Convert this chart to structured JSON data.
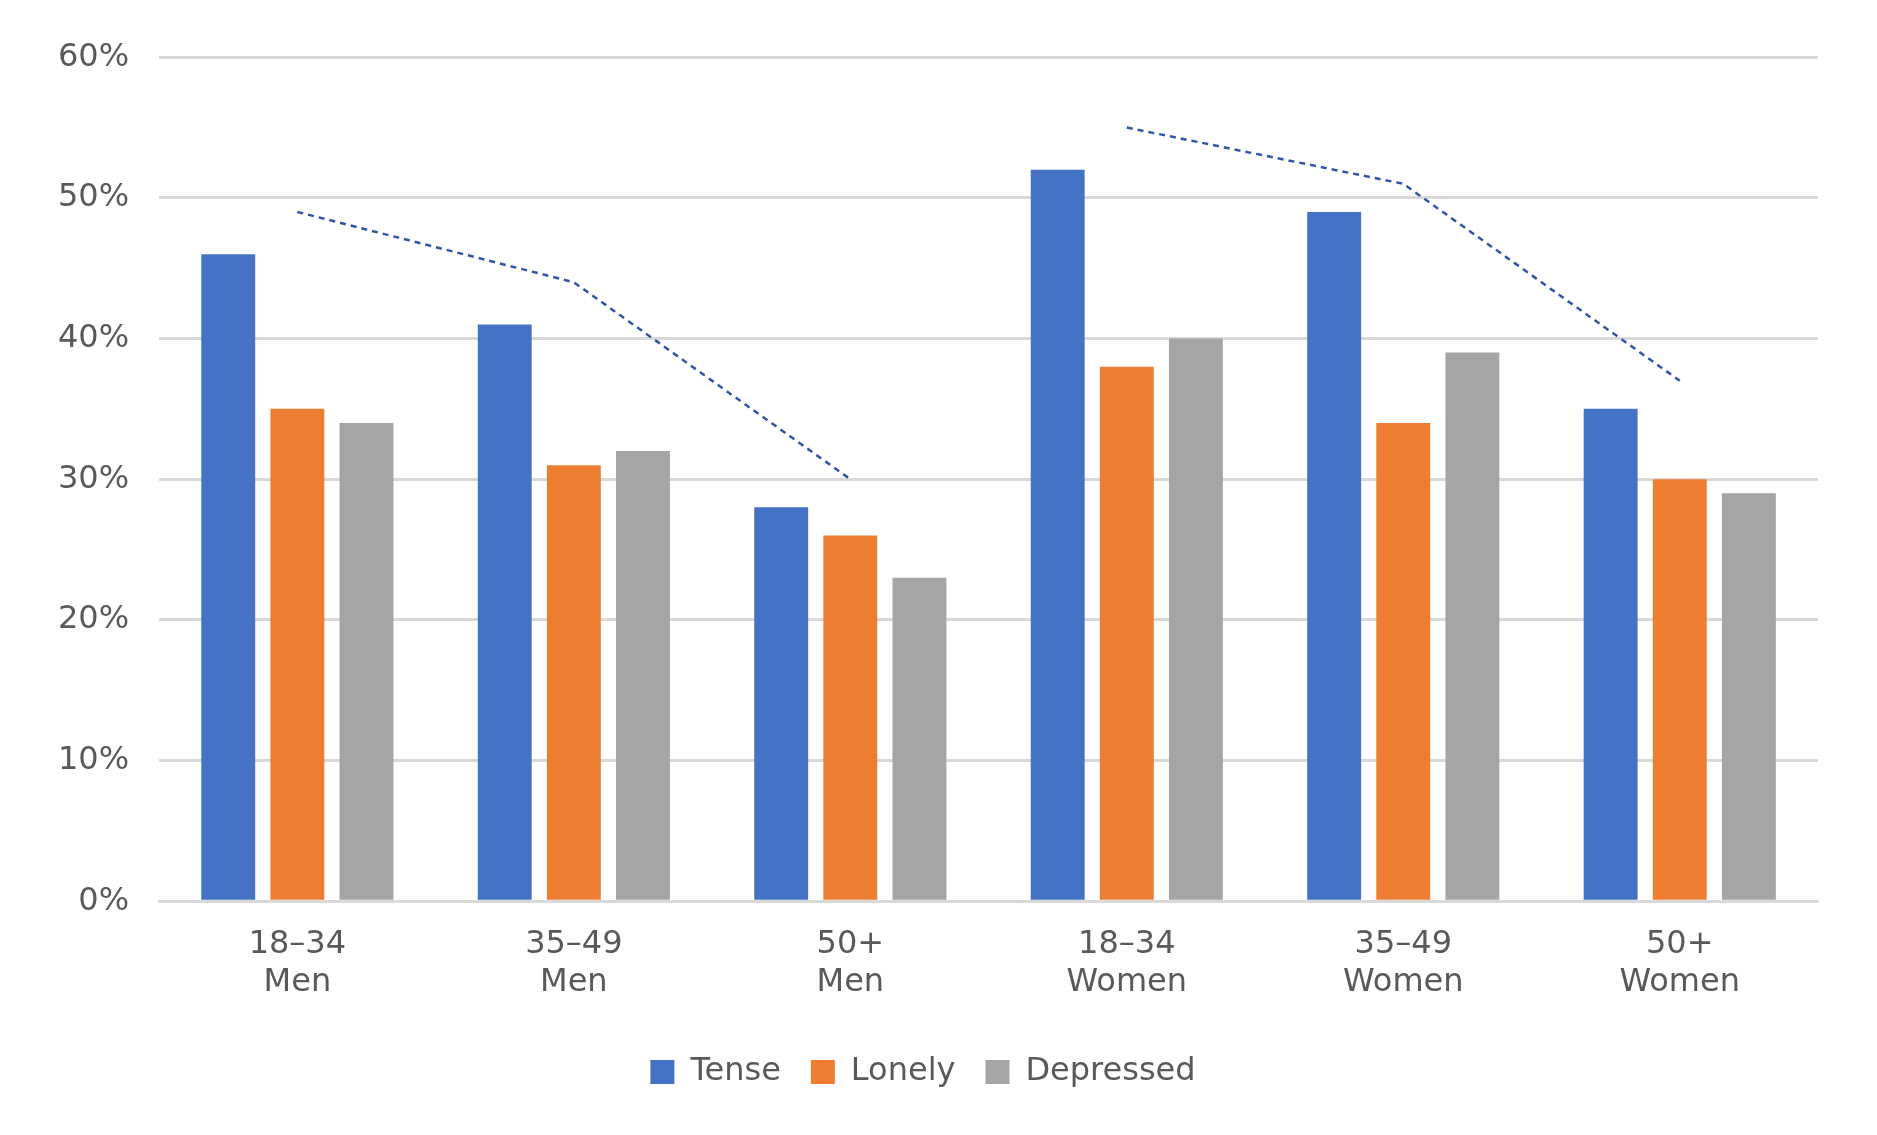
{
  "chart_data": {
    "type": "bar",
    "categories": [
      "18–34\nMen",
      "35–49\nMen",
      "50+\nMen",
      "18–34\nWomen",
      "35–49\nWomen",
      "50+\nWomen"
    ],
    "series": [
      {
        "name": "Tense",
        "color": "#4472c4",
        "values": [
          46,
          41,
          28,
          52,
          49,
          35
        ]
      },
      {
        "name": "Lonely",
        "color": "#ed7d31",
        "values": [
          35,
          31,
          26,
          38,
          34,
          30
        ]
      },
      {
        "name": "Depressed",
        "color": "#a5a5a5",
        "values": [
          34,
          32,
          23,
          40,
          39,
          29
        ]
      },
      {
        "type": "line",
        "color": "#2f55a4",
        "line_style": "dashed",
        "values": [
          49,
          44,
          30,
          null,
          null,
          null
        ]
      },
      {
        "type": "line",
        "color": "#2f55a4",
        "line_style": "dashed",
        "values": [
          null,
          null,
          null,
          55,
          51,
          37
        ]
      }
    ],
    "ylim": [
      0,
      60
    ],
    "yticks": [
      {
        "value": 0,
        "label": "0%"
      },
      {
        "value": 10,
        "label": "10%"
      },
      {
        "value": 20,
        "label": "20%"
      },
      {
        "value": 30,
        "label": "30%"
      },
      {
        "value": 40,
        "label": "40%"
      },
      {
        "value": 50,
        "label": "50%"
      },
      {
        "value": 60,
        "label": "60%"
      }
    ],
    "grid": "y",
    "legend": "bottom",
    "marker": "none"
  }
}
